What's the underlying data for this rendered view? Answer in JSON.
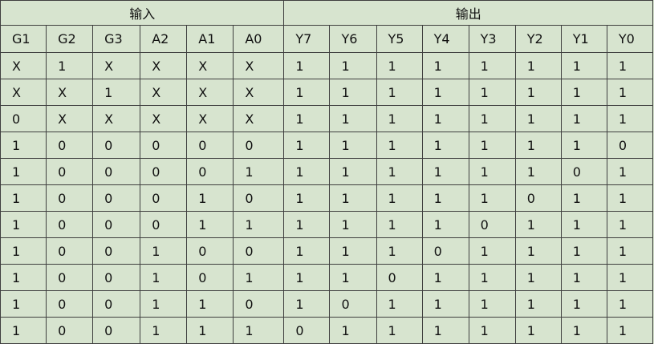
{
  "groups": {
    "inputs": "输入",
    "outputs": "输出"
  },
  "input_columns": [
    "G1",
    "G2",
    "G3",
    "A2",
    "A1",
    "A0"
  ],
  "output_columns": [
    "Y7",
    "Y6",
    "Y5",
    "Y4",
    "Y3",
    "Y2",
    "Y1",
    "Y0"
  ],
  "rows": [
    [
      "X",
      "1",
      "X",
      "X",
      "X",
      "X",
      "1",
      "1",
      "1",
      "1",
      "1",
      "1",
      "1",
      "1"
    ],
    [
      "X",
      "X",
      "1",
      "X",
      "X",
      "X",
      "1",
      "1",
      "1",
      "1",
      "1",
      "1",
      "1",
      "1"
    ],
    [
      "0",
      "X",
      "X",
      "X",
      "X",
      "X",
      "1",
      "1",
      "1",
      "1",
      "1",
      "1",
      "1",
      "1"
    ],
    [
      "1",
      "0",
      "0",
      "0",
      "0",
      "0",
      "1",
      "1",
      "1",
      "1",
      "1",
      "1",
      "1",
      "0"
    ],
    [
      "1",
      "0",
      "0",
      "0",
      "0",
      "1",
      "1",
      "1",
      "1",
      "1",
      "1",
      "1",
      "0",
      "1"
    ],
    [
      "1",
      "0",
      "0",
      "0",
      "1",
      "0",
      "1",
      "1",
      "1",
      "1",
      "1",
      "0",
      "1",
      "1"
    ],
    [
      "1",
      "0",
      "0",
      "0",
      "1",
      "1",
      "1",
      "1",
      "1",
      "1",
      "0",
      "1",
      "1",
      "1"
    ],
    [
      "1",
      "0",
      "0",
      "1",
      "0",
      "0",
      "1",
      "1",
      "1",
      "0",
      "1",
      "1",
      "1",
      "1"
    ],
    [
      "1",
      "0",
      "0",
      "1",
      "0",
      "1",
      "1",
      "1",
      "0",
      "1",
      "1",
      "1",
      "1",
      "1"
    ],
    [
      "1",
      "0",
      "0",
      "1",
      "1",
      "0",
      "1",
      "0",
      "1",
      "1",
      "1",
      "1",
      "1",
      "1"
    ],
    [
      "1",
      "0",
      "0",
      "1",
      "1",
      "1",
      "0",
      "1",
      "1",
      "1",
      "1",
      "1",
      "1",
      "1"
    ]
  ],
  "colors": {
    "background": "#d7e4cf",
    "border": "#3f3f3f",
    "text": "#111111"
  }
}
